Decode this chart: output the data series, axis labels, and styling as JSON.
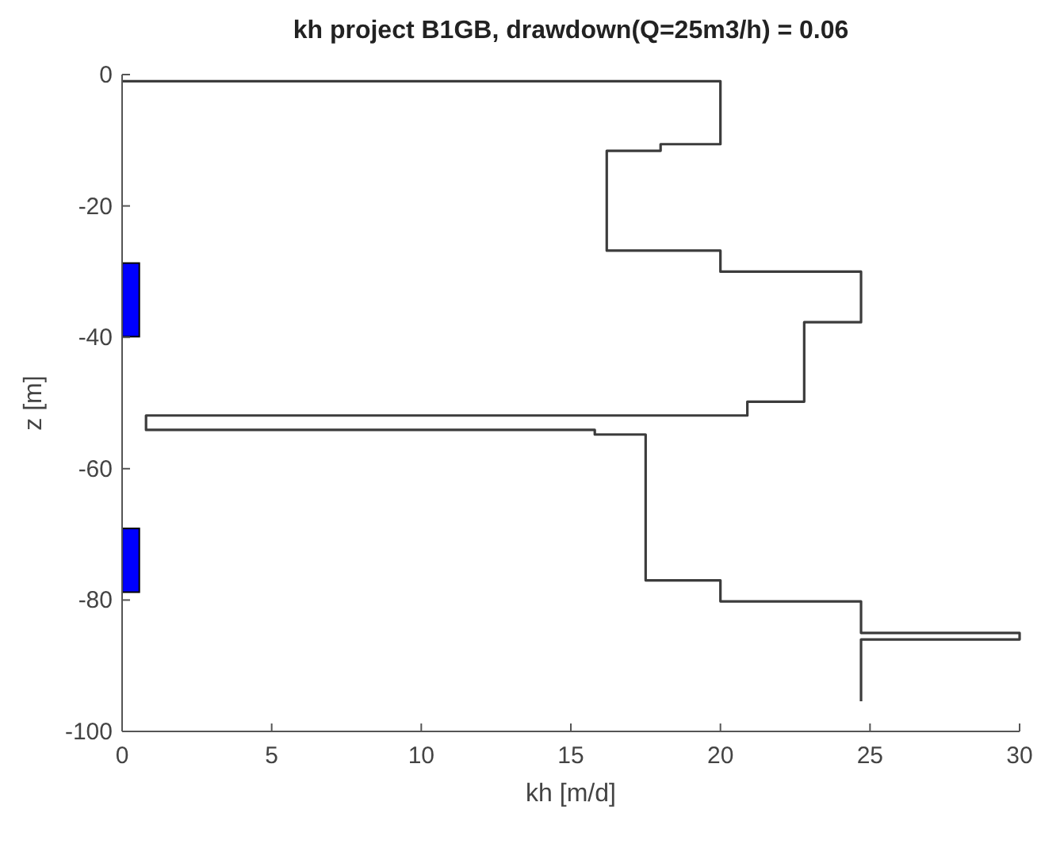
{
  "chart_data": {
    "type": "line",
    "title": "kh project B1GB, drawdown(Q=25m3/h) = 0.06",
    "xlabel": "kh [m/d]",
    "ylabel": "z [m]",
    "xlim": [
      0,
      30
    ],
    "xticks": [
      0,
      5,
      10,
      15,
      20,
      25,
      30
    ],
    "ylim": [
      -100,
      0
    ],
    "yticks": [
      -100,
      -80,
      -60,
      -40,
      -20,
      0
    ],
    "grid": false,
    "marker": "none",
    "line_style": "solid",
    "series": [
      {
        "color": "#3c3c3c",
        "x": [
          0,
          20,
          20,
          18,
          18,
          16.2,
          16.2,
          20,
          20,
          24.7,
          24.7,
          22.8,
          22.8,
          20.9,
          20.9,
          0.8,
          0.8,
          15.8,
          15.8,
          17.5,
          17.5,
          20,
          20,
          24.7,
          24.7,
          30,
          30,
          24.7,
          24.7
        ],
        "values": [
          -1,
          -1,
          -10.6,
          -10.6,
          -11.6,
          -11.6,
          -26.8,
          -26.8,
          -30,
          -30,
          -37.7,
          -37.7,
          -49.8,
          -49.8,
          -51.9,
          -51.9,
          -54.1,
          -54.1,
          -54.8,
          -54.8,
          -77,
          -77,
          -80.2,
          -80.2,
          -85,
          -85,
          -86,
          -86,
          -95.4
        ]
      },
      {
        "type": "bar",
        "color": "#0000ff",
        "x": [
          0.29,
          0.29
        ],
        "base": [
          -39.9,
          -78.8
        ],
        "values": [
          11.2,
          9.7
        ]
      }
    ]
  }
}
